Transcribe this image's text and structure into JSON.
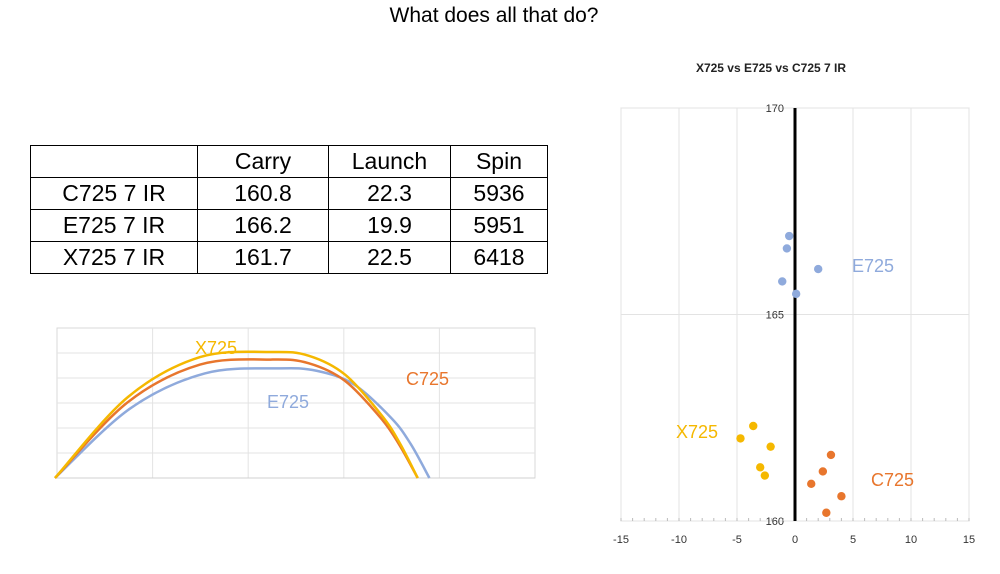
{
  "page": {
    "title": "What does all that do?"
  },
  "table": {
    "headers": [
      "",
      "Carry",
      "Launch",
      "Spin"
    ],
    "rows": [
      {
        "label": "C725 7 IR",
        "carry": "160.8",
        "launch": "22.3",
        "spin": "5936"
      },
      {
        "label": "E725 7 IR",
        "carry": "166.2",
        "launch": "19.9",
        "spin": "5951"
      },
      {
        "label": "X725 7 IR",
        "carry": "161.7",
        "launch": "22.5",
        "spin": "6418"
      }
    ]
  },
  "chart_data": [
    {
      "type": "line",
      "title": "",
      "grid": true,
      "colors": {
        "X725": "#F5B800",
        "C725": "#E8762D",
        "E725": "#8FAADC"
      },
      "series": [
        {
          "name": "X725",
          "x": [
            0,
            0.2,
            0.4,
            0.6,
            0.7,
            0.8,
            0.9,
            0.95,
            1.0
          ],
          "y": [
            0,
            0.64,
            0.96,
            1.0,
            0.97,
            0.82,
            0.5,
            0.28,
            0
          ]
        },
        {
          "name": "C725",
          "x": [
            0,
            0.2,
            0.4,
            0.6,
            0.7,
            0.8,
            0.9,
            0.95,
            1.0
          ],
          "y": [
            0,
            0.6,
            0.9,
            0.94,
            0.91,
            0.77,
            0.47,
            0.26,
            0
          ]
        },
        {
          "name": "E725",
          "x": [
            0,
            0.2,
            0.4,
            0.6,
            0.7,
            0.8,
            0.9,
            0.95,
            1.0
          ],
          "y": [
            0,
            0.55,
            0.83,
            0.87,
            0.85,
            0.74,
            0.47,
            0.27,
            0
          ]
        }
      ],
      "series_ends": {
        "X725": 0.93,
        "C725": 0.93,
        "E725": 0.96
      }
    },
    {
      "type": "scatter",
      "title": "X725 vs E725 vs C725 7 IR",
      "xlim": [
        -15,
        15
      ],
      "ylim": [
        160,
        170
      ],
      "xticks": [
        "-15",
        "-10",
        "-5",
        "0",
        "5",
        "10",
        "15"
      ],
      "yticks": [
        "160",
        "165",
        "170"
      ],
      "grid": true,
      "colors": {
        "X725": "#F5B800",
        "C725": "#E8762D",
        "E725": "#8FAADC"
      },
      "series": [
        {
          "name": "E725",
          "points": [
            [
              -0.5,
              166.9
            ],
            [
              -0.7,
              166.6
            ],
            [
              -1.1,
              165.8
            ],
            [
              0.1,
              165.5
            ],
            [
              2.0,
              166.1
            ]
          ]
        },
        {
          "name": "X725",
          "points": [
            [
              -3.6,
              162.3
            ],
            [
              -4.7,
              162.0
            ],
            [
              -2.1,
              161.8
            ],
            [
              -3.0,
              161.3
            ],
            [
              -2.6,
              161.1
            ]
          ]
        },
        {
          "name": "C725",
          "points": [
            [
              3.1,
              161.6
            ],
            [
              2.4,
              161.2
            ],
            [
              1.4,
              160.9
            ],
            [
              4.0,
              160.6
            ],
            [
              2.7,
              160.2
            ]
          ]
        }
      ]
    }
  ]
}
